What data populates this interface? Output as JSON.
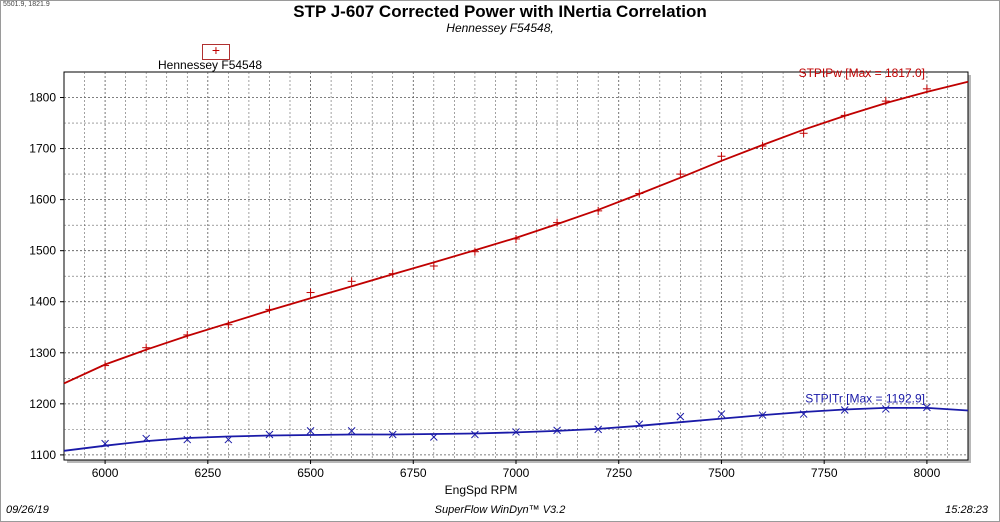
{
  "header": {
    "coords": "5501.9, 1821.9",
    "title": "STP J-607 Corrected Power with INertia Correlation",
    "subtitle": "Hennessey F54548,"
  },
  "legend": {
    "label": "Hennessey F54548",
    "marker": "+"
  },
  "footer": {
    "date": "09/26/19",
    "app": "SuperFlow WinDyn™ V3.2",
    "time": "15:28:23"
  },
  "colors": {
    "power": "#c00000",
    "torque": "#1a1aa8",
    "grid": "#555555"
  },
  "chart_data": {
    "type": "line",
    "title": "STP J-607 Corrected Power with INertia Correlation",
    "subtitle": "Hennessey F54548,",
    "xlabel": "EngSpd RPM",
    "ylabel": "",
    "xlim": [
      5900,
      8100
    ],
    "ylim": [
      1090,
      1850
    ],
    "x_ticks": [
      6000,
      6250,
      6500,
      6750,
      7000,
      7250,
      7500,
      7750,
      8000
    ],
    "y_ticks": [
      1100,
      1200,
      1300,
      1400,
      1500,
      1600,
      1700,
      1800
    ],
    "grid": true,
    "series": [
      {
        "name": "STPIPw",
        "annotation": "STPIPw [Max = 1817.0]",
        "curve_x": [
          5900,
          6000,
          6100,
          6200,
          6300,
          6400,
          6500,
          6600,
          6700,
          6800,
          6900,
          7000,
          7100,
          7200,
          7300,
          7400,
          7500,
          7600,
          7700,
          7800,
          7900,
          8000,
          8100
        ],
        "curve_y": [
          1240,
          1277,
          1306,
          1333,
          1358,
          1383,
          1407,
          1430,
          1454,
          1477,
          1501,
          1525,
          1552,
          1580,
          1611,
          1643,
          1676,
          1707,
          1737,
          1764,
          1789,
          1811,
          1831
        ],
        "points_x": [
          6000,
          6100,
          6200,
          6300,
          6400,
          6500,
          6600,
          6700,
          6800,
          6900,
          7000,
          7100,
          7200,
          7300,
          7400,
          7500,
          7600,
          7700,
          7800,
          7900,
          8000
        ],
        "points_y": [
          1275,
          1310,
          1335,
          1355,
          1385,
          1418,
          1440,
          1455,
          1470,
          1498,
          1523,
          1555,
          1578,
          1612,
          1650,
          1685,
          1705,
          1730,
          1765,
          1793,
          1817
        ]
      },
      {
        "name": "STPITr",
        "annotation": "STPITr [Max = 1192.9]",
        "curve_x": [
          5900,
          6000,
          6100,
          6200,
          6300,
          6400,
          6500,
          6600,
          6700,
          6800,
          6900,
          7000,
          7100,
          7200,
          7300,
          7400,
          7500,
          7600,
          7700,
          7800,
          7900,
          8000,
          8100
        ],
        "curve_y": [
          1108,
          1118,
          1127,
          1133,
          1136,
          1138,
          1139,
          1140,
          1140,
          1141,
          1142,
          1144,
          1147,
          1151,
          1157,
          1164,
          1171,
          1178,
          1184,
          1189,
          1192,
          1192,
          1187
        ],
        "points_x": [
          6000,
          6100,
          6200,
          6300,
          6400,
          6500,
          6600,
          6700,
          6800,
          6900,
          7000,
          7100,
          7200,
          7300,
          7400,
          7500,
          7600,
          7700,
          7800,
          7900,
          8000
        ],
        "points_y": [
          1122,
          1132,
          1130,
          1130,
          1140,
          1147,
          1147,
          1140,
          1135,
          1140,
          1145,
          1148,
          1150,
          1160,
          1175,
          1180,
          1178,
          1180,
          1188,
          1190,
          1193
        ]
      }
    ]
  }
}
